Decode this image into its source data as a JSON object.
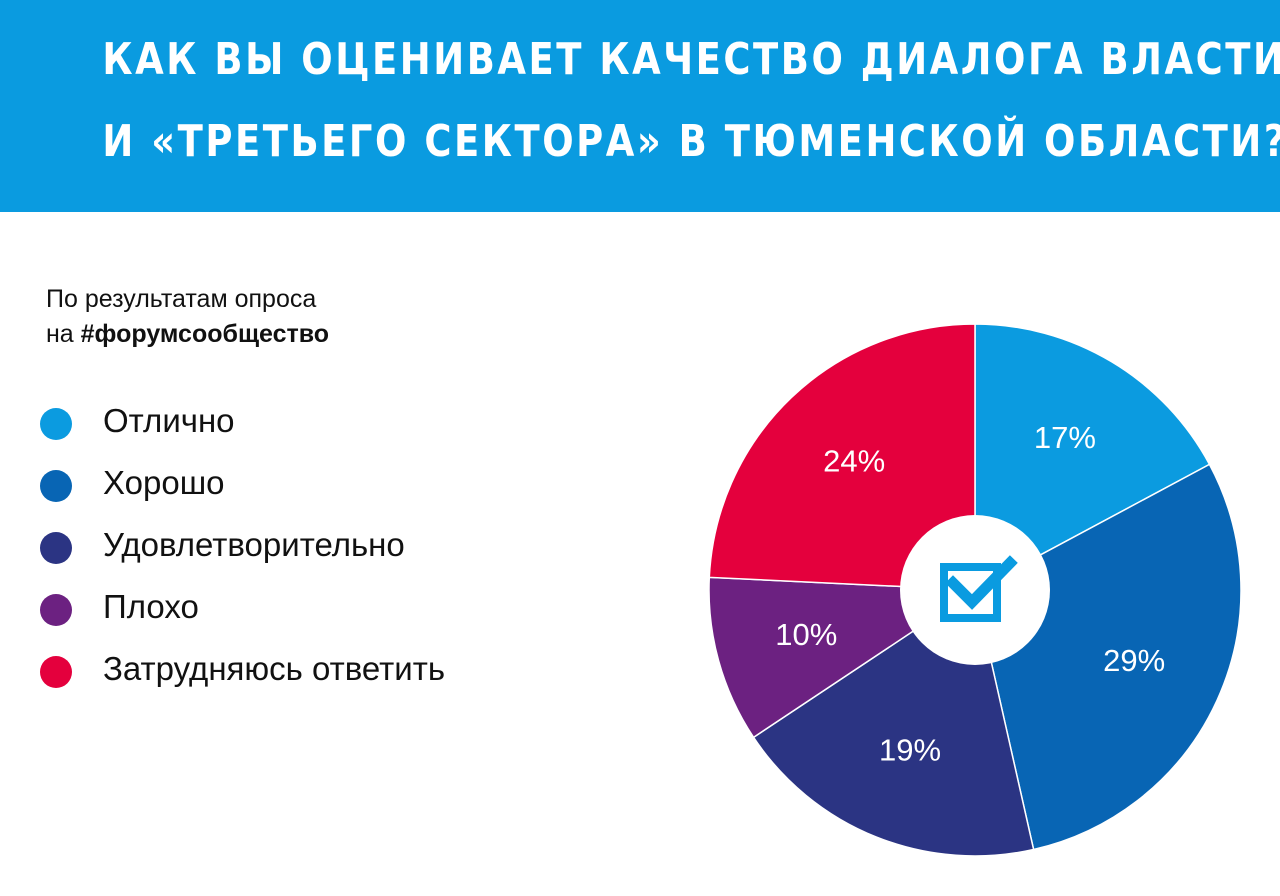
{
  "title": {
    "line1": "КАК ВЫ ОЦЕНИВАЕТ КАЧЕСТВО ДИАЛОГА ВЛАСТИ",
    "line2": "И «ТРЕТЬЕГО СЕКТОРА» В ТЮМЕНСКОЙ ОБЛАСТИ?"
  },
  "subtitle": {
    "line1": "По результатам опроса",
    "line2_prefix": "на ",
    "line2_tag": "#форумсообщество"
  },
  "colors": {
    "header_bg": "#0a9be0",
    "center_icon": "#0a9be0"
  },
  "center_icon": "checkbox-check-icon",
  "chart_data": {
    "type": "pie",
    "title": "КАК ВЫ ОЦЕНИВАЕТ КАЧЕСТВО ДИАЛОГА ВЛАСТИ И «ТРЕТЬЕГО СЕКТОРА» В ТЮМЕНСКОЙ ОБЛАСТИ?",
    "subtitle": "По результатам опроса на #форумсообщество",
    "legend_position": "left",
    "slices": [
      {
        "label": "Отлично",
        "value": 17,
        "value_label": "17%",
        "color": "#0b9be0"
      },
      {
        "label": "Хорошо",
        "value": 29,
        "value_label": "29%",
        "color": "#0865b4"
      },
      {
        "label": "Удовлетворительно",
        "value": 19,
        "value_label": "19%",
        "color": "#2b3483"
      },
      {
        "label": "Плохо",
        "value": 10,
        "value_label": "10%",
        "color": "#6c2181"
      },
      {
        "label": "Затрудняюсь ответить",
        "value": 24,
        "value_label": "24%",
        "color": "#e4003d"
      }
    ]
  }
}
